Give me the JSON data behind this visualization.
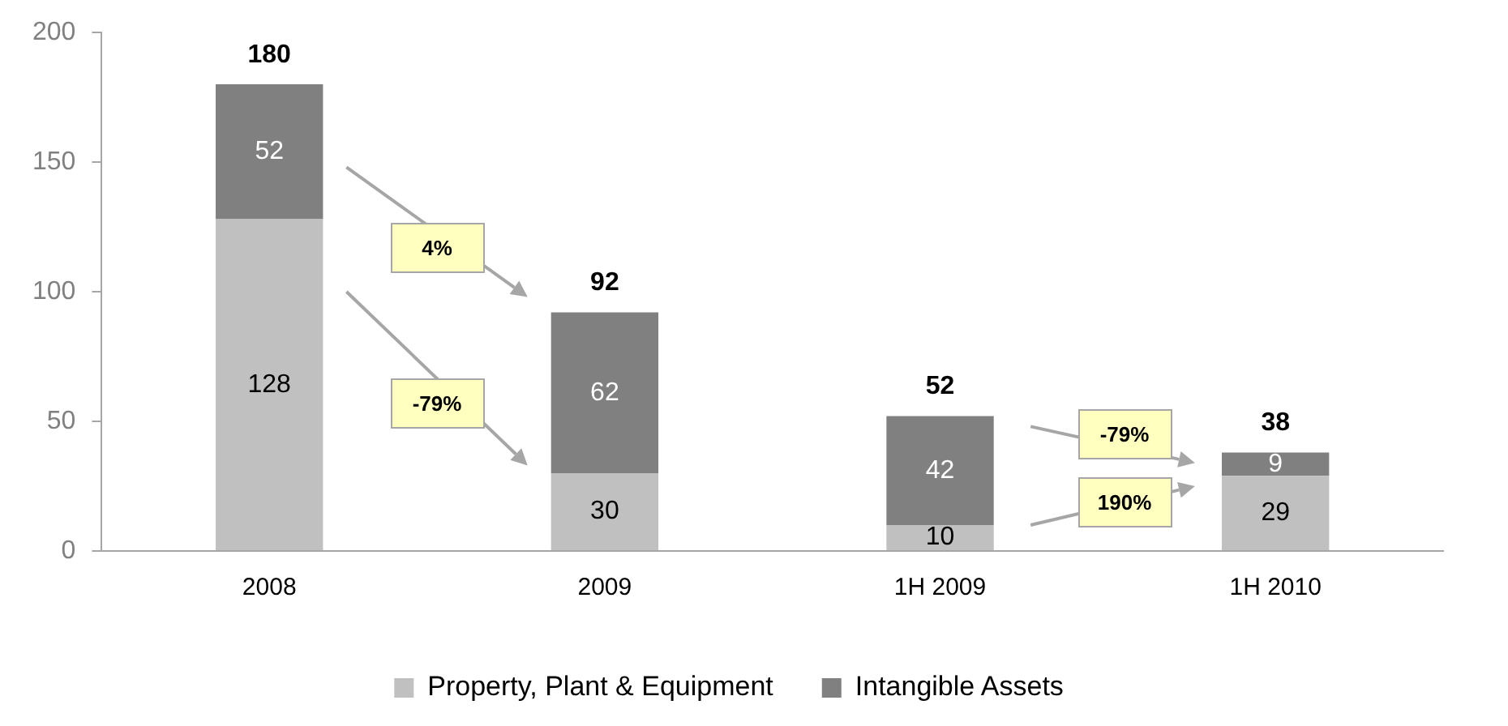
{
  "chart_data": {
    "type": "bar",
    "stacked": true,
    "categories": [
      "2008",
      "2009",
      "1H 2009",
      "1H 2010"
    ],
    "series": [
      {
        "name": "Property, Plant & Equipment",
        "color": "#c0c0c0",
        "values": [
          128,
          30,
          10,
          29
        ]
      },
      {
        "name": "Intangible Assets",
        "color": "#808080",
        "values": [
          52,
          62,
          42,
          9
        ]
      }
    ],
    "ylim": [
      0,
      200
    ],
    "yticks": [
      0,
      50,
      100,
      150,
      200
    ],
    "grid": false,
    "legend": "bottom",
    "data_labels": true,
    "totals": [
      "180",
      "92",
      "52",
      "38"
    ],
    "annotations": [
      "4%",
      "-79%",
      "-79%",
      "190%"
    ]
  }
}
